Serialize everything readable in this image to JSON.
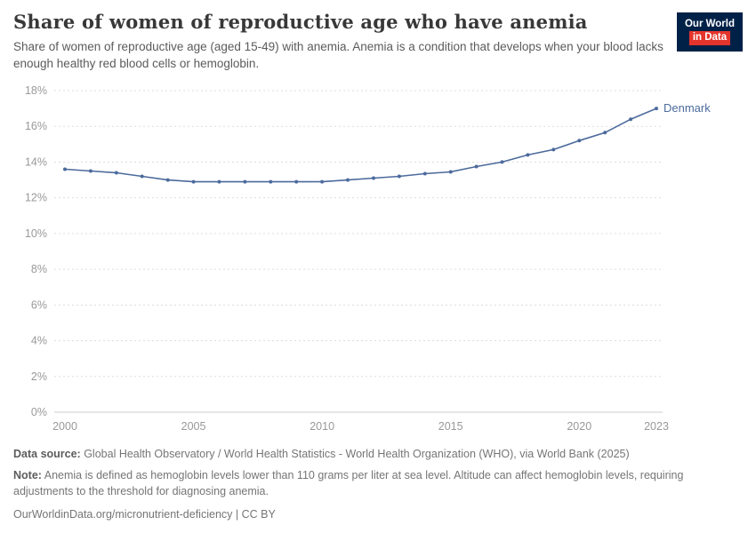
{
  "header": {
    "title": "Share of women of reproductive age who have anemia",
    "subtitle": "Share of women of reproductive age (aged 15-49) with anemia. Anemia is a condition that develops when your blood lacks enough healthy red blood cells or hemoglobin.",
    "logo": {
      "line1": "Our World",
      "line2": "in Data",
      "bg_color": "#002147",
      "accent_color": "#e5342b"
    }
  },
  "chart_data": {
    "type": "line",
    "title": "Share of women of reproductive age who have anemia",
    "xlabel": "",
    "ylabel": "",
    "xlim": [
      2000,
      2023
    ],
    "ylim": [
      0,
      18
    ],
    "xticks": [
      2000,
      2005,
      2010,
      2015,
      2020,
      2023
    ],
    "yticks": [
      0,
      2,
      4,
      6,
      8,
      10,
      12,
      14,
      16,
      18
    ],
    "ytick_suffix": "%",
    "grid": "horizontal-dashed",
    "legend_position": "end-of-line-label",
    "grid_color": "#dddddd",
    "axis_color": "#cccccc",
    "tick_color": "#999999",
    "series": [
      {
        "name": "Denmark",
        "color": "#4c6a9c",
        "x": [
          2000,
          2001,
          2002,
          2003,
          2004,
          2005,
          2006,
          2007,
          2008,
          2009,
          2010,
          2011,
          2012,
          2013,
          2014,
          2015,
          2016,
          2017,
          2018,
          2019,
          2020,
          2021,
          2022,
          2023
        ],
        "values": [
          13.6,
          13.5,
          13.4,
          13.2,
          13.0,
          12.9,
          12.9,
          12.9,
          12.9,
          12.9,
          12.9,
          13.0,
          13.1,
          13.2,
          13.35,
          13.45,
          13.75,
          14.0,
          14.4,
          14.7,
          15.2,
          15.65,
          16.4,
          17.0
        ]
      }
    ]
  },
  "footer": {
    "source": {
      "label": "Data source:",
      "text": " Global Health Observatory / World Health Statistics - World Health Organization (WHO), via World Bank (2025)"
    },
    "note": {
      "label": "Note:",
      "text": " Anemia is defined as hemoglobin levels lower than 110 grams per liter at sea level. Altitude can affect hemoglobin levels, requiring adjustments to the threshold for diagnosing anemia."
    },
    "license": {
      "link": "OurWorldinData.org/micronutrient-deficiency",
      "separator": " | ",
      "cc": "CC BY"
    }
  }
}
